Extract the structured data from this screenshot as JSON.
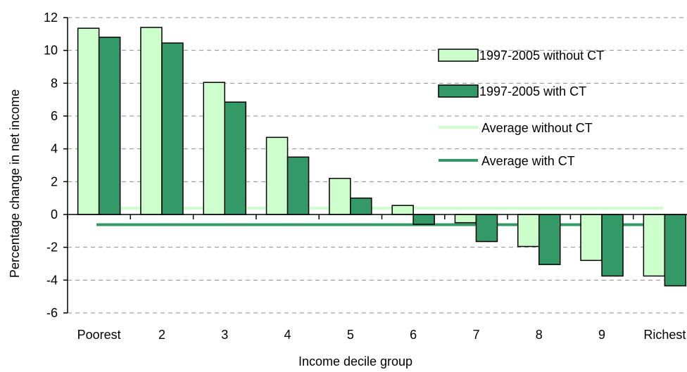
{
  "chart_data": {
    "type": "bar",
    "title": "",
    "xlabel": "Income decile group",
    "ylabel": "Percentage change in net income",
    "categories": [
      "Poorest",
      "2",
      "3",
      "4",
      "5",
      "6",
      "7",
      "8",
      "9",
      "Richest"
    ],
    "ylim": [
      -6,
      12
    ],
    "yticks": [
      12,
      10,
      8,
      6,
      4,
      2,
      0,
      -2,
      -4,
      -6
    ],
    "grid": true,
    "legend_position": "right",
    "series": [
      {
        "name": "1997-2005 without CT",
        "color": "#ccffcc",
        "values": [
          11.35,
          11.4,
          8.05,
          4.7,
          2.2,
          0.55,
          -0.5,
          -1.95,
          -2.8,
          -3.75
        ]
      },
      {
        "name": "1997-2005 with CT",
        "color": "#339966",
        "values": [
          10.8,
          10.45,
          6.85,
          3.5,
          1.0,
          -0.6,
          -1.65,
          -3.05,
          -3.75,
          -4.35
        ]
      }
    ],
    "reference_lines": [
      {
        "name": "Average without CT",
        "color": "#ccffcc",
        "value": 0.38
      },
      {
        "name": "Average with CT",
        "color": "#339966",
        "value": -0.62
      }
    ]
  }
}
